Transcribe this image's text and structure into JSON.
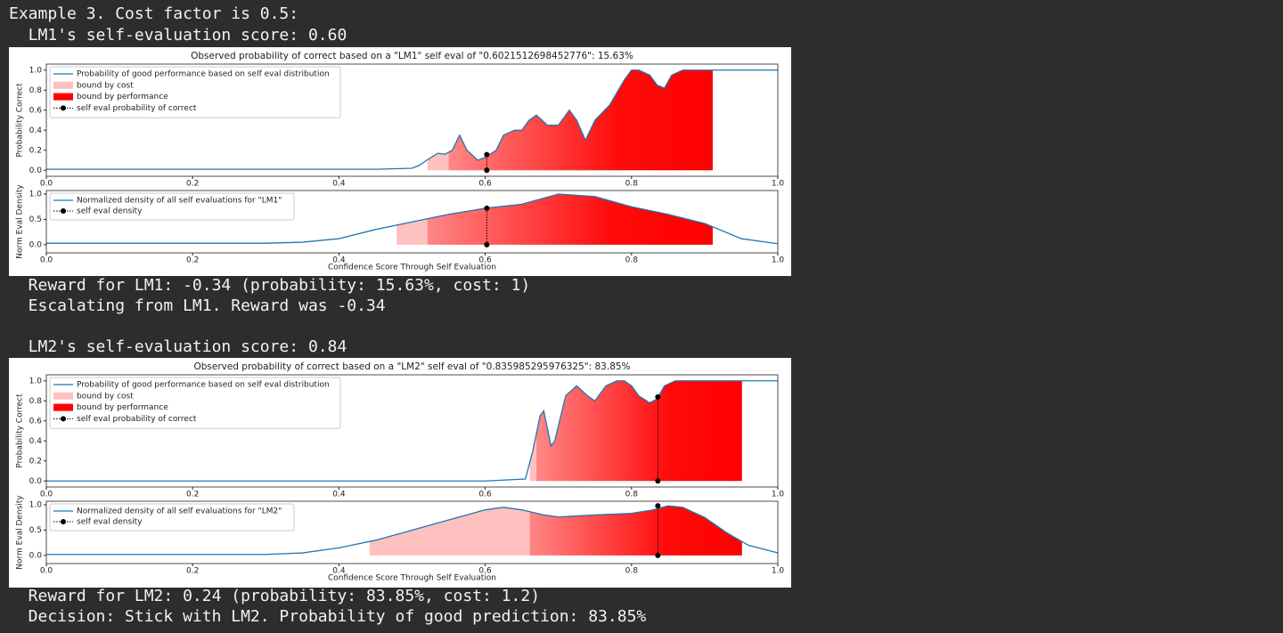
{
  "terminal": {
    "lines": [
      "Example 3. Cost factor is 0.5:",
      "  LM1's self-evaluation score: 0.60",
      "  Reward for LM1: -0.34 (probability: 15.63%, cost: 1)",
      "  Escalating from LM1. Reward was -0.34",
      "  LM2's self-evaluation score: 0.84",
      "  Reward for LM2: 0.24 (probability: 83.85%, cost: 1.2)",
      "  Decision: Stick with LM2. Probability of good prediction: 83.85%"
    ]
  },
  "chart_data": [
    {
      "type": "line",
      "title": "Observed probability of correct based on a \"LM1\" self eval of \"0.6021512698452776\": 15.63%",
      "ylabel": "Probability Correct",
      "xlim": [
        0,
        1
      ],
      "ylim": [
        -0.06,
        1.06
      ],
      "xticks": [
        {
          "value": 0,
          "label": "0.0"
        },
        0.2,
        0.4,
        0.6,
        0.8,
        {
          "value": 1,
          "label": "1.0"
        }
      ],
      "yticks": [
        {
          "value": 0,
          "label": "0.0"
        },
        0.2,
        0.4,
        0.6,
        0.8,
        {
          "value": 1,
          "label": "1.0"
        }
      ],
      "series": [
        {
          "name": "Probability of good performance based on self eval distribution",
          "color": "#1f77b4",
          "x": [
            0,
            0.45,
            0.5,
            0.51,
            0.52,
            0.535,
            0.545,
            0.555,
            0.565,
            0.575,
            0.59,
            0.6,
            0.615,
            0.625,
            0.64,
            0.65,
            0.66,
            0.67,
            0.685,
            0.7,
            0.715,
            0.725,
            0.737,
            0.75,
            0.77,
            0.79,
            0.8,
            0.81,
            0.825,
            0.835,
            0.845,
            0.855,
            0.87,
            0.9,
            1
          ],
          "values": [
            0.01,
            0.01,
            0.02,
            0.05,
            0.1,
            0.17,
            0.16,
            0.2,
            0.35,
            0.2,
            0.1,
            0.13,
            0.2,
            0.35,
            0.4,
            0.4,
            0.5,
            0.55,
            0.45,
            0.45,
            0.6,
            0.5,
            0.3,
            0.5,
            0.65,
            0.9,
            1,
            1,
            0.95,
            0.85,
            0.82,
            0.95,
            1,
            1,
            1
          ]
        }
      ],
      "fills": [
        {
          "name": "bound by cost",
          "color": "#ffc0c0",
          "xrange": [
            0.521,
            0.911
          ]
        },
        {
          "name": "bound by performance",
          "color": "#ff0000",
          "xrange": [
            0.55,
            0.911
          ]
        }
      ],
      "marker": {
        "name": "self eval probability of correct",
        "color": "#000000",
        "x": 0.6021512698452776,
        "values": [
          0,
          0.1563
        ]
      }
    },
    {
      "type": "line",
      "ylabel": "Norm Eval Density",
      "xlabel": "Confidence Score Through Self Evaluation",
      "xlim": [
        0,
        1
      ],
      "ylim": [
        -0.16,
        1.07
      ],
      "xticks": [
        {
          "value": 0,
          "label": "0.0"
        },
        0.2,
        0.4,
        0.6,
        0.8,
        {
          "value": 1,
          "label": "1.0"
        }
      ],
      "yticks": [
        {
          "value": 0,
          "label": "0.0"
        },
        0.5,
        {
          "value": 1,
          "label": "1.0"
        }
      ],
      "series": [
        {
          "name": "Normalized density of all self evaluations for \"LM1\"",
          "color": "#1f77b4",
          "x": [
            0,
            0.3,
            0.35,
            0.4,
            0.45,
            0.5,
            0.55,
            0.6,
            0.65,
            0.7,
            0.75,
            0.8,
            0.85,
            0.9,
            0.95,
            1
          ],
          "values": [
            0.03,
            0.03,
            0.05,
            0.12,
            0.3,
            0.45,
            0.6,
            0.72,
            0.8,
            1,
            0.95,
            0.75,
            0.6,
            0.42,
            0.12,
            0.02
          ]
        }
      ],
      "fills": [
        {
          "color": "#ffc0c0",
          "xrange": [
            0.479,
            0.911
          ]
        },
        {
          "color": "#ff0000",
          "xrange": [
            0.521,
            0.911
          ]
        }
      ],
      "marker": {
        "name": "self eval density",
        "color": "#000000",
        "x": 0.6021512698452776,
        "values": [
          0,
          0.72
        ]
      }
    },
    {
      "type": "line",
      "title": "Observed probability of correct based on a \"LM2\" self eval of \"0.835985295976325\": 83.85%",
      "ylabel": "Probability Correct",
      "xlim": [
        0,
        1
      ],
      "ylim": [
        -0.06,
        1.06
      ],
      "xticks": [
        {
          "value": 0,
          "label": "0.0"
        },
        0.2,
        0.4,
        0.6,
        0.8,
        {
          "value": 1,
          "label": "1.0"
        }
      ],
      "yticks": [
        {
          "value": 0,
          "label": "0.0"
        },
        0.2,
        0.4,
        0.6,
        0.8,
        {
          "value": 1,
          "label": "1.0"
        }
      ],
      "series": [
        {
          "name": "Probability of good performance based on self eval distribution",
          "color": "#1f77b4",
          "x": [
            0,
            0.6,
            0.655,
            0.665,
            0.675,
            0.68,
            0.69,
            0.695,
            0.71,
            0.725,
            0.74,
            0.75,
            0.765,
            0.78,
            0.79,
            0.8,
            0.81,
            0.825,
            0.835,
            0.845,
            0.86,
            0.9,
            1
          ],
          "values": [
            0,
            0,
            0.02,
            0.3,
            0.65,
            0.7,
            0.35,
            0.4,
            0.85,
            0.95,
            0.85,
            0.8,
            0.95,
            1,
            1,
            0.95,
            0.85,
            0.78,
            0.82,
            0.95,
            1,
            1,
            1
          ]
        }
      ],
      "fills": [
        {
          "name": "bound by cost",
          "color": "#ffc0c0",
          "xrange": [
            0.661,
            0.951
          ]
        },
        {
          "name": "bound by performance",
          "color": "#ff0000",
          "xrange": [
            0.67,
            0.951
          ]
        }
      ],
      "marker": {
        "name": "self eval probability of correct",
        "color": "#000000",
        "x": 0.835985295976325,
        "values": [
          0,
          0.8385
        ]
      }
    },
    {
      "type": "line",
      "ylabel": "Norm Eval Density",
      "xlabel": "Confidence Score Through Self Evaluation",
      "xlim": [
        0,
        1
      ],
      "ylim": [
        -0.16,
        1.07
      ],
      "xticks": [
        {
          "value": 0,
          "label": "0.0"
        },
        0.2,
        0.4,
        0.6,
        0.8,
        {
          "value": 1,
          "label": "1.0"
        }
      ],
      "yticks": [
        {
          "value": 0,
          "label": "0.0"
        },
        0.5,
        {
          "value": 1,
          "label": "1.0"
        }
      ],
      "series": [
        {
          "name": "Normalized density of all self evaluations for \"LM2\"",
          "color": "#1f77b4",
          "x": [
            0,
            0.3,
            0.35,
            0.4,
            0.45,
            0.5,
            0.55,
            0.6,
            0.625,
            0.65,
            0.68,
            0.7,
            0.75,
            0.8,
            0.83,
            0.85,
            0.87,
            0.9,
            0.93,
            0.96,
            1
          ],
          "values": [
            0.02,
            0.02,
            0.05,
            0.15,
            0.3,
            0.5,
            0.7,
            0.9,
            0.95,
            0.9,
            0.8,
            0.76,
            0.8,
            0.83,
            0.9,
            0.98,
            0.95,
            0.75,
            0.45,
            0.2,
            0.05
          ]
        }
      ],
      "fills": [
        {
          "color": "#ffc0c0",
          "xrange": [
            0.442,
            0.951
          ]
        },
        {
          "color": "#ff0000",
          "xrange": [
            0.661,
            0.951
          ]
        }
      ],
      "marker": {
        "name": "self eval density",
        "color": "#000000",
        "x": 0.835985295976325,
        "values": [
          0,
          0.98
        ]
      }
    }
  ]
}
